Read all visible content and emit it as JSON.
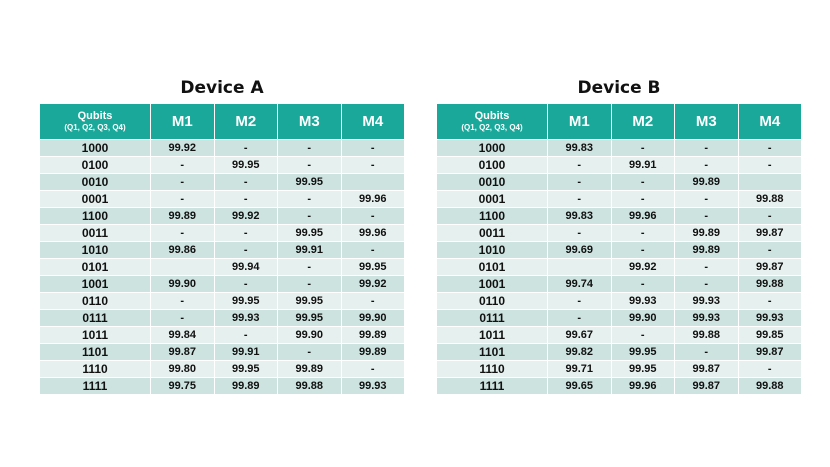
{
  "header_qubits": "Qubits",
  "header_order": "(Q1, Q2, Q3, Q4)",
  "measurement_headers": [
    "M1",
    "M2",
    "M3",
    "M4"
  ],
  "tables": [
    {
      "title": "Device A",
      "rows": [
        {
          "q": "1000",
          "m": [
            "99.92",
            "-",
            "-",
            "-"
          ]
        },
        {
          "q": "0100",
          "m": [
            "-",
            "99.95",
            "-",
            "-"
          ]
        },
        {
          "q": "0010",
          "m": [
            "-",
            "-",
            "99.95",
            ""
          ]
        },
        {
          "q": "0001",
          "m": [
            "-",
            "-",
            "-",
            "99.96"
          ]
        },
        {
          "q": "1100",
          "m": [
            "99.89",
            "99.92",
            "-",
            "-"
          ]
        },
        {
          "q": "0011",
          "m": [
            "-",
            "-",
            "99.95",
            "99.96"
          ]
        },
        {
          "q": "1010",
          "m": [
            "99.86",
            "-",
            "99.91",
            "-"
          ]
        },
        {
          "q": "0101",
          "m": [
            "",
            "99.94",
            "-",
            "99.95"
          ]
        },
        {
          "q": "1001",
          "m": [
            "99.90",
            "-",
            "-",
            "99.92"
          ]
        },
        {
          "q": "0110",
          "m": [
            "-",
            "99.95",
            "99.95",
            "-"
          ]
        },
        {
          "q": "0111",
          "m": [
            "-",
            "99.93",
            "99.95",
            "99.90"
          ]
        },
        {
          "q": "1011",
          "m": [
            "99.84",
            "-",
            "99.90",
            "99.89"
          ]
        },
        {
          "q": "1101",
          "m": [
            "99.87",
            "99.91",
            "-",
            "99.89"
          ]
        },
        {
          "q": "1110",
          "m": [
            "99.80",
            "99.95",
            "99.89",
            "-"
          ]
        },
        {
          "q": "1111",
          "m": [
            "99.75",
            "99.89",
            "99.88",
            "99.93"
          ]
        }
      ]
    },
    {
      "title": "Device B",
      "rows": [
        {
          "q": "1000",
          "m": [
            "99.83",
            "-",
            "-",
            "-"
          ]
        },
        {
          "q": "0100",
          "m": [
            "-",
            "99.91",
            "-",
            "-"
          ]
        },
        {
          "q": "0010",
          "m": [
            "-",
            "-",
            "99.89",
            ""
          ]
        },
        {
          "q": "0001",
          "m": [
            "-",
            "-",
            "-",
            "99.88"
          ]
        },
        {
          "q": "1100",
          "m": [
            "99.83",
            "99.96",
            "-",
            "-"
          ]
        },
        {
          "q": "0011",
          "m": [
            "-",
            "-",
            "99.89",
            "99.87"
          ]
        },
        {
          "q": "1010",
          "m": [
            "99.69",
            "-",
            "99.89",
            "-"
          ]
        },
        {
          "q": "0101",
          "m": [
            "",
            "99.92",
            "-",
            "99.87"
          ]
        },
        {
          "q": "1001",
          "m": [
            "99.74",
            "-",
            "-",
            "99.88"
          ]
        },
        {
          "q": "0110",
          "m": [
            "-",
            "99.93",
            "99.93",
            "-"
          ]
        },
        {
          "q": "0111",
          "m": [
            "-",
            "99.90",
            "99.93",
            "99.93"
          ]
        },
        {
          "q": "1011",
          "m": [
            "99.67",
            "-",
            "99.88",
            "99.85"
          ]
        },
        {
          "q": "1101",
          "m": [
            "99.82",
            "99.95",
            "-",
            "99.87"
          ]
        },
        {
          "q": "1110",
          "m": [
            "99.71",
            "99.95",
            "99.87",
            "-"
          ]
        },
        {
          "q": "1111",
          "m": [
            "99.65",
            "99.96",
            "99.87",
            "99.88"
          ]
        }
      ]
    }
  ]
}
